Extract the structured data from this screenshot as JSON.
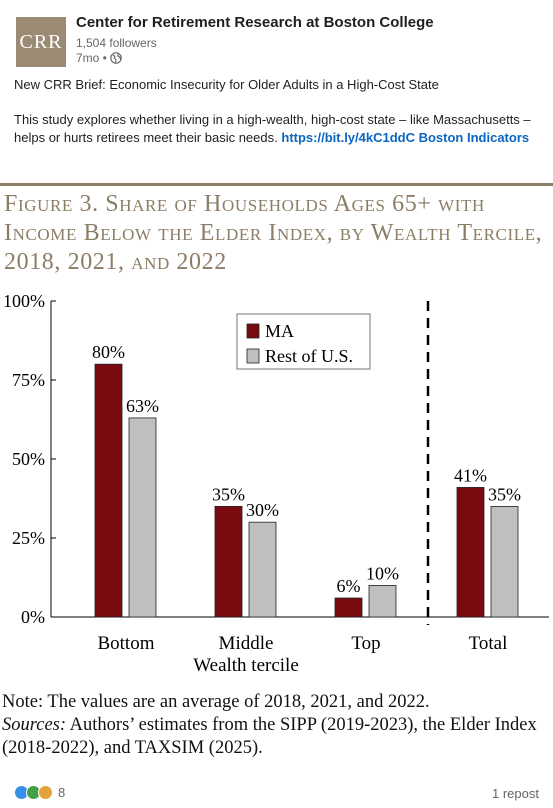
{
  "post": {
    "avatar_text": "CRR",
    "author": "Center for Retirement Research at Boston College",
    "followers": "1,504 followers",
    "age": "7mo •",
    "globe_icon": "globe-icon",
    "headline": "New CRR Brief: Economic Insecurity for Older Adults in a High-Cost State",
    "body": "This study explores whether living in a high-wealth, high-cost state – like Massachusetts – helps or hurts retirees meet their basic needs.",
    "link_text": "https://bit.ly/4kC1ddC Boston Indicators"
  },
  "figure": {
    "title": "Figure 3. Share of Households Ages 65+ with Income Below the Elder Index, by Wealth Tercile, 2018, 2021, and 2022",
    "note": "Note: The values are an average of 2018, 2021, and 2022.",
    "sources_label": "Sources:",
    "sources_text": "Authors’ estimates from the SIPP (2019-2023), the Elder Index (2018-2022), and TAXSIM (2025)."
  },
  "chart_data": {
    "type": "bar",
    "title": "Figure 3. Share of Households Ages 65+ with Income Below the Elder Index, by Wealth Tercile, 2018, 2021, and 2022",
    "categories": [
      "Bottom",
      "Middle",
      "Top",
      "Total"
    ],
    "xlabel": "Wealth tercile",
    "ylabel": "",
    "ylim": [
      0,
      100
    ],
    "yticks": [
      "0%",
      "25%",
      "50%",
      "75%",
      "100%"
    ],
    "series": [
      {
        "name": "MA",
        "values": [
          80,
          35,
          6,
          41
        ],
        "labels": [
          "80%",
          "35%",
          "6%",
          "41%"
        ],
        "color": "#7a0a0f"
      },
      {
        "name": "Rest of U.S.",
        "values": [
          63,
          30,
          10,
          35
        ],
        "labels": [
          "63%",
          "30%",
          "10%",
          "35%"
        ],
        "color": "#bfbfbf"
      }
    ],
    "legend_position": "top-center",
    "grid": false,
    "divider": "dashed line before Total"
  },
  "footer": {
    "reaction_icons": [
      "like-icon",
      "celebrate-icon",
      "love-icon"
    ],
    "reaction_count": "8",
    "reposts": "1 repost"
  }
}
